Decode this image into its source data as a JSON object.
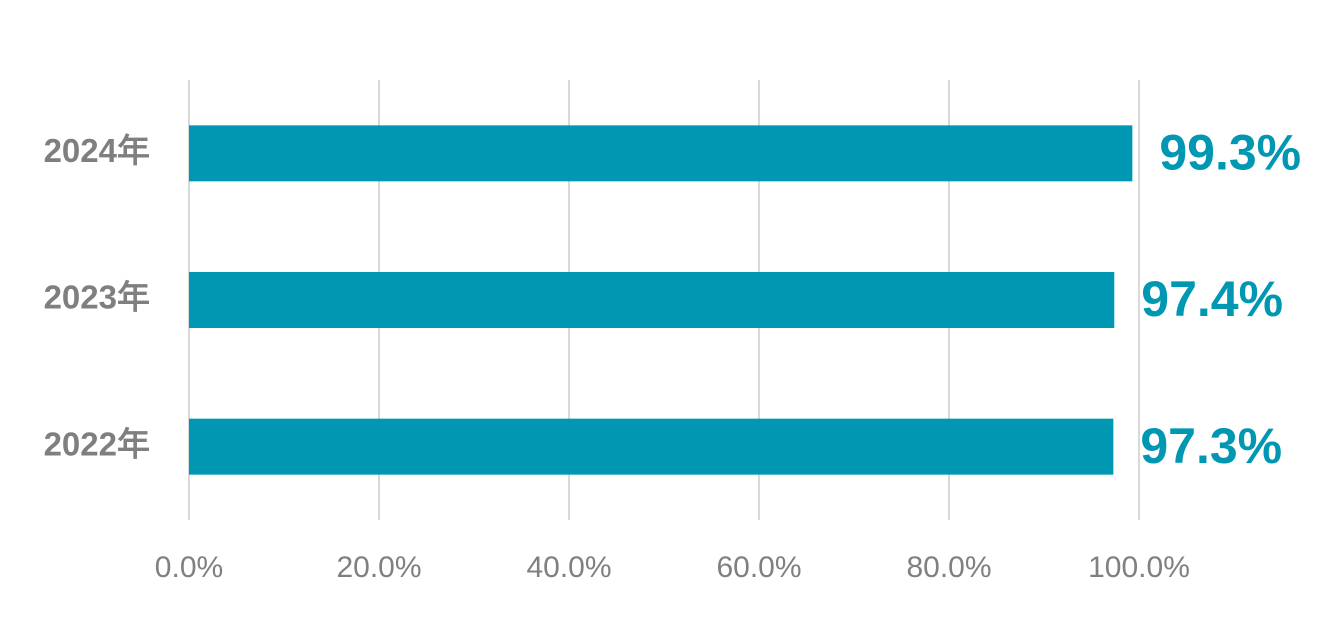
{
  "chart_data": {
    "type": "bar",
    "orientation": "horizontal",
    "categories": [
      "2024年",
      "2023年",
      "2022年"
    ],
    "values": [
      99.3,
      97.4,
      97.3
    ],
    "value_labels": [
      "99.3%",
      "97.4%",
      "97.3%"
    ],
    "color": "#0097b2",
    "xlim": [
      0,
      100
    ],
    "xticks": [
      {
        "value": 0,
        "label": "0.0%"
      },
      {
        "value": 20,
        "label": "20.0%"
      },
      {
        "value": 40,
        "label": "40.0%"
      },
      {
        "value": 60,
        "label": "60.0%"
      },
      {
        "value": 80,
        "label": "80.0%"
      },
      {
        "value": 100,
        "label": "100.0%"
      }
    ],
    "grid": true
  }
}
